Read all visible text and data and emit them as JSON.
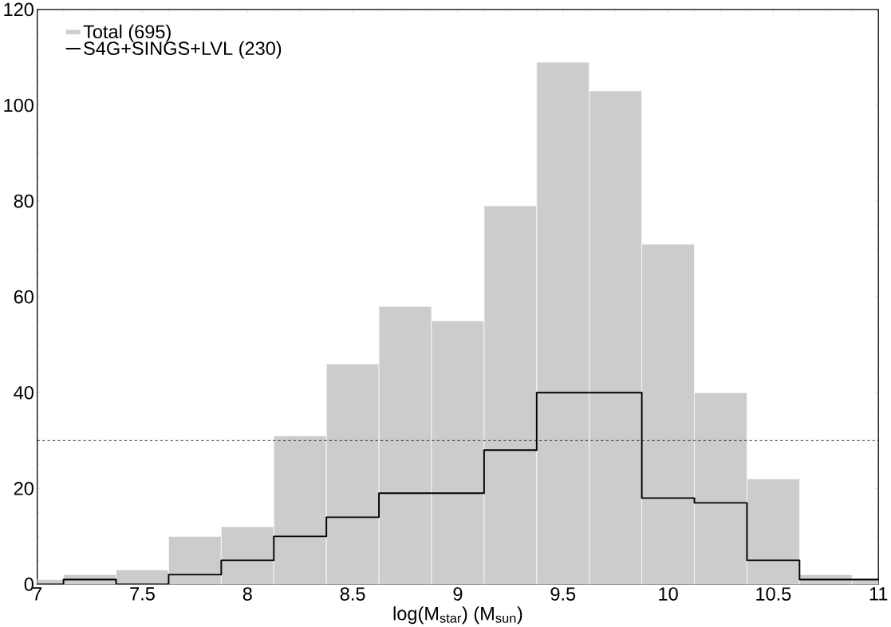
{
  "chart_data": {
    "type": "histogram",
    "xlabel": "log(M$_{star}$) (M$_{sun}$)",
    "bins": [
      7,
      7.125,
      7.375,
      7.625,
      7.875,
      8.125,
      8.375,
      8.625,
      8.875,
      9.125,
      9.375,
      9.625,
      9.875,
      10.125,
      10.375,
      10.625,
      10.875,
      11
    ],
    "series": [
      {
        "name": "Total (695)",
        "color": "#cccccc",
        "values": [
          1,
          2,
          3,
          10,
          12,
          31,
          46,
          58,
          55,
          79,
          109,
          103,
          71,
          40,
          22,
          2,
          1
        ]
      },
      {
        "name": "S4G+SINGS+LVL (230)",
        "type": "step",
        "color": "#000000",
        "x": [
          7,
          7.125,
          7.375,
          7.625,
          7.875,
          8.125,
          8.375,
          8.625,
          8.875,
          9.125,
          9.375,
          9.625,
          9.875,
          10.125,
          10.375,
          10.625,
          10.875,
          11
        ],
        "values": [
          0,
          1,
          0,
          2,
          5,
          10,
          14,
          19,
          19,
          28,
          40,
          40,
          18,
          17,
          5,
          1,
          1,
          1
        ]
      }
    ],
    "xlim": [
      7,
      11
    ],
    "ylim": [
      0,
      120
    ],
    "xticks": [
      7,
      7.5,
      8,
      8.5,
      9,
      9.5,
      10,
      10.5,
      11
    ],
    "yticks": [
      0,
      20,
      40,
      60,
      80,
      100,
      120
    ],
    "ref_lines": [
      {
        "axis": "y",
        "value": 30,
        "line_style": "dashed"
      }
    ],
    "legend": "top left"
  }
}
